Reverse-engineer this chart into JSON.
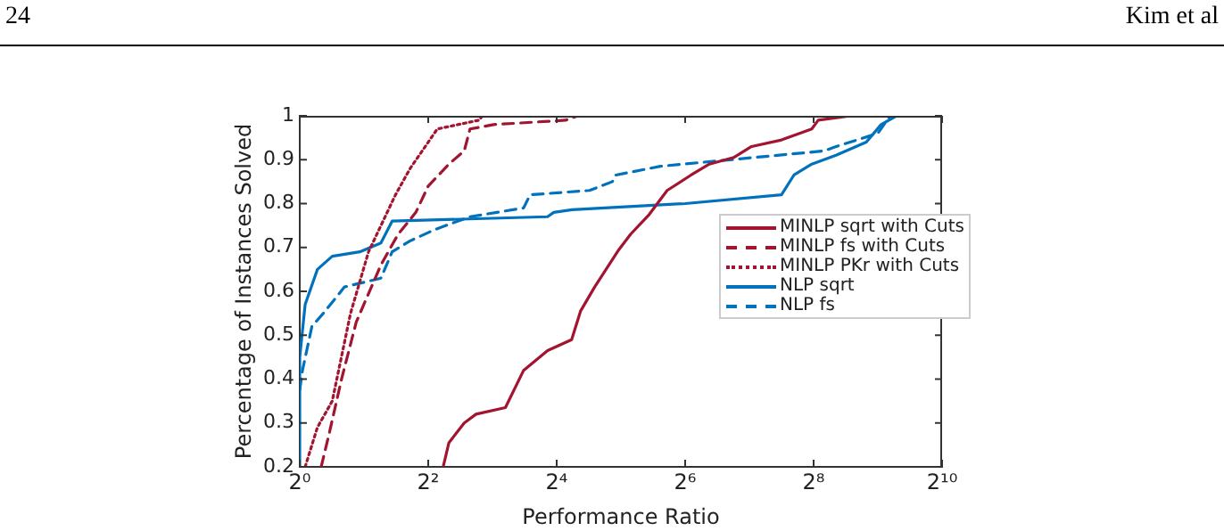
{
  "chart_data": {
    "type": "line",
    "xlabel": "Performance Ratio",
    "ylabel": "Percentage of Instances Solved",
    "annotations": [
      "24",
      "Kim et al"
    ],
    "log": "x",
    "xlim": [
      1,
      1024
    ],
    "xticks": [
      {
        "value": 1,
        "label": "2⁰"
      },
      {
        "value": 4,
        "label": "2²"
      },
      {
        "value": 16,
        "label": "2⁴"
      },
      {
        "value": 64,
        "label": "2⁶"
      },
      {
        "value": 256,
        "label": "2⁸"
      },
      {
        "value": 1024,
        "label": "2¹⁰"
      }
    ],
    "ylim": [
      0.2,
      1
    ],
    "yticks": [
      0.2,
      0.3,
      0.4,
      0.5,
      0.6,
      0.7,
      0.8,
      0.9,
      1
    ],
    "grid": false,
    "legend": "right",
    "marker": "none",
    "series": [
      {
        "name": "MINLP sqrt with Cuts",
        "color": "#a2142f",
        "line_style": "solid",
        "x": [
          4.7,
          5.0,
          5.9,
          6.7,
          9.2,
          11.2,
          14.5,
          18.8,
          20.7,
          24.1,
          31.3,
          35.5,
          43.4,
          52.7,
          68.2,
          83.1,
          108,
          131,
          181,
          251,
          269,
          383
        ],
        "values": [
          0.2,
          0.255,
          0.3,
          0.32,
          0.335,
          0.42,
          0.465,
          0.49,
          0.555,
          0.61,
          0.695,
          0.73,
          0.775,
          0.83,
          0.865,
          0.89,
          0.905,
          0.93,
          0.945,
          0.97,
          0.99,
          1.0
        ]
      },
      {
        "name": "MINLP fs with Cuts",
        "color": "#a2142f",
        "line_style": "dashed",
        "x": [
          1.26,
          1.38,
          1.57,
          1.84,
          2.4,
          2.89,
          3.5,
          4.0,
          5.0,
          5.9,
          6.28,
          8.1,
          17.6,
          20.1
        ],
        "values": [
          0.2,
          0.28,
          0.4,
          0.53,
          0.66,
          0.73,
          0.78,
          0.84,
          0.89,
          0.92,
          0.97,
          0.98,
          0.99,
          1.0
        ]
      },
      {
        "name": "MINLP PKr with Cuts",
        "color": "#a2142f",
        "line_style": "dotted",
        "x": [
          1.06,
          1.21,
          1.42,
          1.73,
          2.1,
          2.81,
          3.29,
          4.41,
          6.9,
          7.2
        ],
        "values": [
          0.2,
          0.29,
          0.35,
          0.55,
          0.69,
          0.82,
          0.88,
          0.97,
          0.99,
          1.0
        ]
      },
      {
        "name": "NLP sqrt",
        "color": "#0072bd",
        "line_style": "solid",
        "x": [
          1,
          1,
          1.06,
          1.21,
          1.42,
          1.91,
          2.4,
          2.71,
          14.5,
          15.5,
          18.9,
          64,
          181,
          207,
          251,
          326,
          452,
          530,
          626
        ],
        "values": [
          0.2,
          0.45,
          0.57,
          0.65,
          0.68,
          0.69,
          0.71,
          0.76,
          0.77,
          0.78,
          0.786,
          0.8,
          0.82,
          0.865,
          0.89,
          0.91,
          0.94,
          0.98,
          1.0
        ]
      },
      {
        "name": "NLP fs",
        "color": "#0072bd",
        "line_style": "dashed",
        "x": [
          1,
          1.03,
          1.14,
          1.29,
          1.62,
          2.4,
          2.71,
          3.29,
          4.26,
          6.28,
          11.2,
          12,
          22.8,
          29.2,
          30.3,
          49,
          286,
          326,
          512,
          584
        ],
        "values": [
          0.376,
          0.42,
          0.52,
          0.55,
          0.61,
          0.63,
          0.69,
          0.715,
          0.74,
          0.77,
          0.79,
          0.82,
          0.83,
          0.85,
          0.865,
          0.885,
          0.92,
          0.93,
          0.96,
          1.0
        ]
      }
    ]
  }
}
